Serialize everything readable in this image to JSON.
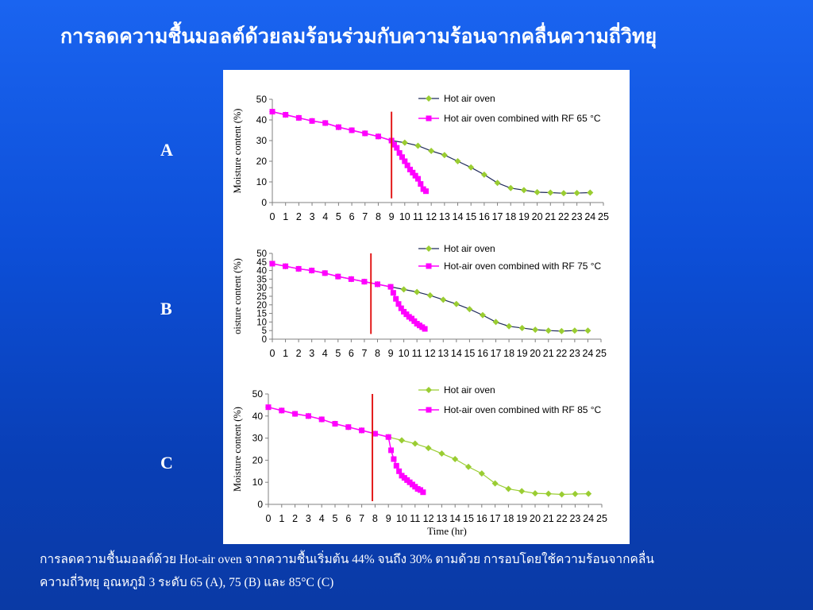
{
  "slide": {
    "title": "การลดความชื้นมอลต์ด้วยลมร้อนร่วมกับความร้อนจากคลื่นความถี่วิทยุ",
    "caption_line1": "การลดความชื้นมอลต์ด้วย Hot-air oven จากความชื้นเริ่มต้น 44% จนถึง 30% ตามด้วย การอบโดยใช้ความร้อนจากคลื่น",
    "caption_line2": "ความถี่วิทยุ อุณหภูมิ 3 ระดับ 65 (A), 75 (B) และ 85°C (C)"
  },
  "colors": {
    "background": "#0d4fd8",
    "hot_air_marker": "#9acd32",
    "hot_air_line_ab": "#1f2a5a",
    "hot_air_line_c": "#9acd32",
    "rf_series": "#ff00ff",
    "rf_start_line": "#e31b1b"
  },
  "chart_data": [
    {
      "panel": "A",
      "type": "line",
      "xlabel": "",
      "ylabel": "Moisture content (%)",
      "xlim": [
        0,
        25
      ],
      "ylim": [
        0,
        50
      ],
      "yticks": [
        0,
        10,
        20,
        30,
        40,
        50
      ],
      "xticks": [
        0,
        1,
        2,
        3,
        4,
        5,
        6,
        7,
        8,
        9,
        10,
        11,
        12,
        13,
        14,
        15,
        16,
        17,
        18,
        19,
        20,
        21,
        22,
        23,
        24,
        25
      ],
      "legend": "top-right",
      "grid": false,
      "rf_start_time": 9,
      "series": [
        {
          "name": "Hot air oven",
          "marker": "diamond",
          "x": [
            0,
            1,
            2,
            3,
            4,
            5,
            6,
            7,
            8,
            9,
            10,
            11,
            12,
            13,
            14,
            15,
            16,
            17,
            18,
            19,
            20,
            21,
            22,
            23,
            24
          ],
          "y": [
            44,
            42.5,
            41,
            39.5,
            38.5,
            36.5,
            35,
            33.5,
            32,
            30,
            29,
            27.5,
            25,
            23,
            20,
            17,
            13.5,
            9.5,
            7,
            6,
            5,
            4.8,
            4.5,
            4.6,
            4.8
          ]
        },
        {
          "name": "Hot air oven combined with RF 65 °C",
          "marker": "square",
          "x": [
            0,
            1,
            2,
            3,
            4,
            5,
            6,
            7,
            8,
            9,
            9.2,
            9.4,
            9.6,
            9.8,
            10,
            10.2,
            10.4,
            10.6,
            10.8,
            11,
            11.2,
            11.4,
            11.6
          ],
          "y": [
            44,
            42.5,
            41,
            39.5,
            38.5,
            36.5,
            35,
            33.5,
            32,
            30,
            28,
            26.5,
            24,
            22,
            20,
            18,
            16,
            14.5,
            13,
            11.5,
            9,
            6.5,
            5.5
          ]
        }
      ]
    },
    {
      "panel": "B",
      "type": "line",
      "xlabel": "",
      "ylabel": "oisture content (%)",
      "xlim": [
        0,
        25
      ],
      "ylim": [
        0,
        50
      ],
      "yticks": [
        0,
        5,
        10,
        15,
        20,
        25,
        30,
        35,
        40,
        45,
        50
      ],
      "xticks": [
        0,
        1,
        2,
        3,
        4,
        5,
        6,
        7,
        8,
        9,
        10,
        11,
        12,
        13,
        14,
        15,
        16,
        17,
        18,
        19,
        20,
        21,
        22,
        23,
        24,
        25
      ],
      "legend": "top-right",
      "grid": false,
      "rf_start_time": 7.5,
      "series": [
        {
          "name": "Hot air oven",
          "marker": "diamond",
          "x": [
            0,
            1,
            2,
            3,
            4,
            5,
            6,
            7,
            8,
            9,
            10,
            11,
            12,
            13,
            14,
            15,
            16,
            17,
            18,
            19,
            20,
            21,
            22,
            23,
            24
          ],
          "y": [
            44,
            42.5,
            41,
            40,
            38.5,
            36.5,
            35,
            33.5,
            32,
            30.5,
            29,
            27.5,
            25.5,
            23,
            20.5,
            17.5,
            14,
            10,
            7.5,
            6.5,
            5.5,
            5,
            4.7,
            5,
            5
          ]
        },
        {
          "name": "Hot-air oven combined with RF 75 °C",
          "marker": "square",
          "x": [
            0,
            1,
            2,
            3,
            4,
            5,
            6,
            7,
            8,
            9,
            9.2,
            9.4,
            9.6,
            9.8,
            10,
            10.2,
            10.4,
            10.6,
            10.8,
            11,
            11.2,
            11.4,
            11.6
          ],
          "y": [
            44,
            42.5,
            41,
            40,
            38.5,
            36.5,
            35,
            33.5,
            32,
            30.5,
            27,
            23.5,
            20.5,
            18,
            16,
            14.5,
            13,
            12,
            10.5,
            9,
            8,
            7,
            6
          ]
        }
      ]
    },
    {
      "panel": "C",
      "type": "line",
      "xlabel": "Time (hr)",
      "ylabel": "Moisture content (%)",
      "xlim": [
        0,
        25
      ],
      "ylim": [
        0,
        50
      ],
      "yticks": [
        0,
        10,
        20,
        30,
        40,
        50
      ],
      "xticks": [
        0,
        1,
        2,
        3,
        4,
        5,
        6,
        7,
        8,
        9,
        10,
        11,
        12,
        13,
        14,
        15,
        16,
        17,
        18,
        19,
        20,
        21,
        22,
        23,
        24,
        25
      ],
      "legend": "top-right",
      "grid": false,
      "rf_start_time": 7.8,
      "series": [
        {
          "name": "Hot air oven",
          "marker": "diamond",
          "x": [
            0,
            1,
            2,
            3,
            4,
            5,
            6,
            7,
            8,
            9,
            10,
            11,
            12,
            13,
            14,
            15,
            16,
            17,
            18,
            19,
            20,
            21,
            22,
            23,
            24
          ],
          "y": [
            44,
            42.5,
            41,
            40,
            38.5,
            36.5,
            35,
            33.5,
            32,
            30.5,
            29,
            27.5,
            25.5,
            23,
            20.5,
            17,
            14,
            9.5,
            7,
            6,
            5,
            4.8,
            4.5,
            4.7,
            4.8
          ]
        },
        {
          "name": "Hot-air oven combined with RF 85 °C",
          "marker": "square",
          "x": [
            0,
            1,
            2,
            3,
            4,
            5,
            6,
            7,
            8,
            9,
            9.2,
            9.4,
            9.6,
            9.8,
            10,
            10.2,
            10.4,
            10.6,
            10.8,
            11,
            11.2,
            11.4,
            11.6
          ],
          "y": [
            44,
            42.5,
            41,
            40,
            38.5,
            36.5,
            35,
            33.5,
            32,
            30.5,
            24.5,
            20.5,
            17.5,
            15,
            13,
            12,
            11,
            10,
            9,
            8,
            7,
            6.5,
            5.5
          ]
        }
      ]
    }
  ]
}
